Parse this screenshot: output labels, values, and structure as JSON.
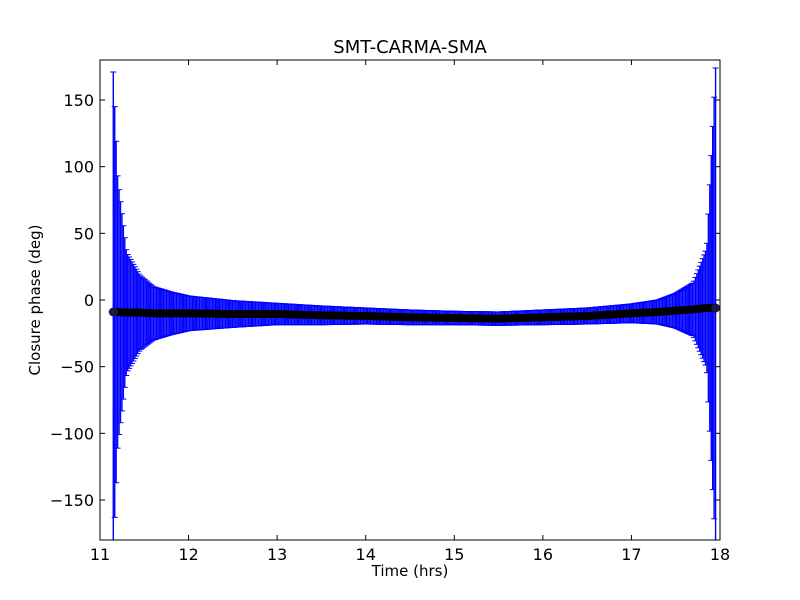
{
  "chart_data": {
    "type": "scatter",
    "title": "SMT-CARMA-SMA",
    "xlabel": "Time (hrs)",
    "ylabel": "Closure phase (deg)",
    "xlim": [
      11,
      18
    ],
    "ylim": [
      -180,
      180
    ],
    "xticks": [
      11,
      12,
      13,
      14,
      15,
      16,
      17,
      18
    ],
    "yticks": [
      -150,
      -100,
      -50,
      0,
      50,
      100,
      150
    ],
    "xtick_labels": [
      "11",
      "12",
      "13",
      "14",
      "15",
      "16",
      "17",
      "18"
    ],
    "ytick_labels": [
      "−150",
      "−100",
      "−50",
      "0",
      "50",
      "100",
      "150"
    ],
    "grid": false,
    "legend": "none",
    "series": [
      {
        "marker": "circle",
        "color": "#000000",
        "errorbar_color": "#0000ff",
        "x": [
          11.15,
          11.2,
          11.3,
          11.45,
          11.6,
          11.8,
          12.0,
          12.5,
          13.0,
          13.5,
          14.0,
          14.5,
          15.0,
          15.5,
          16.0,
          16.5,
          17.0,
          17.3,
          17.5,
          17.7,
          17.85,
          17.95
        ],
        "y": [
          -9,
          -9,
          -9.5,
          -9.5,
          -10,
          -10,
          -10,
          -10.5,
          -10.5,
          -11.5,
          -12,
          -13,
          -13.5,
          -14,
          -13,
          -12,
          -10,
          -9,
          -8,
          -7,
          -6,
          -6
        ],
        "err": [
          180,
          100,
          45,
          28,
          20,
          16,
          13,
          10,
          8,
          7,
          6,
          5.5,
          5,
          5,
          5.5,
          6,
          7,
          9,
          13,
          20,
          45,
          180
        ]
      }
    ]
  }
}
